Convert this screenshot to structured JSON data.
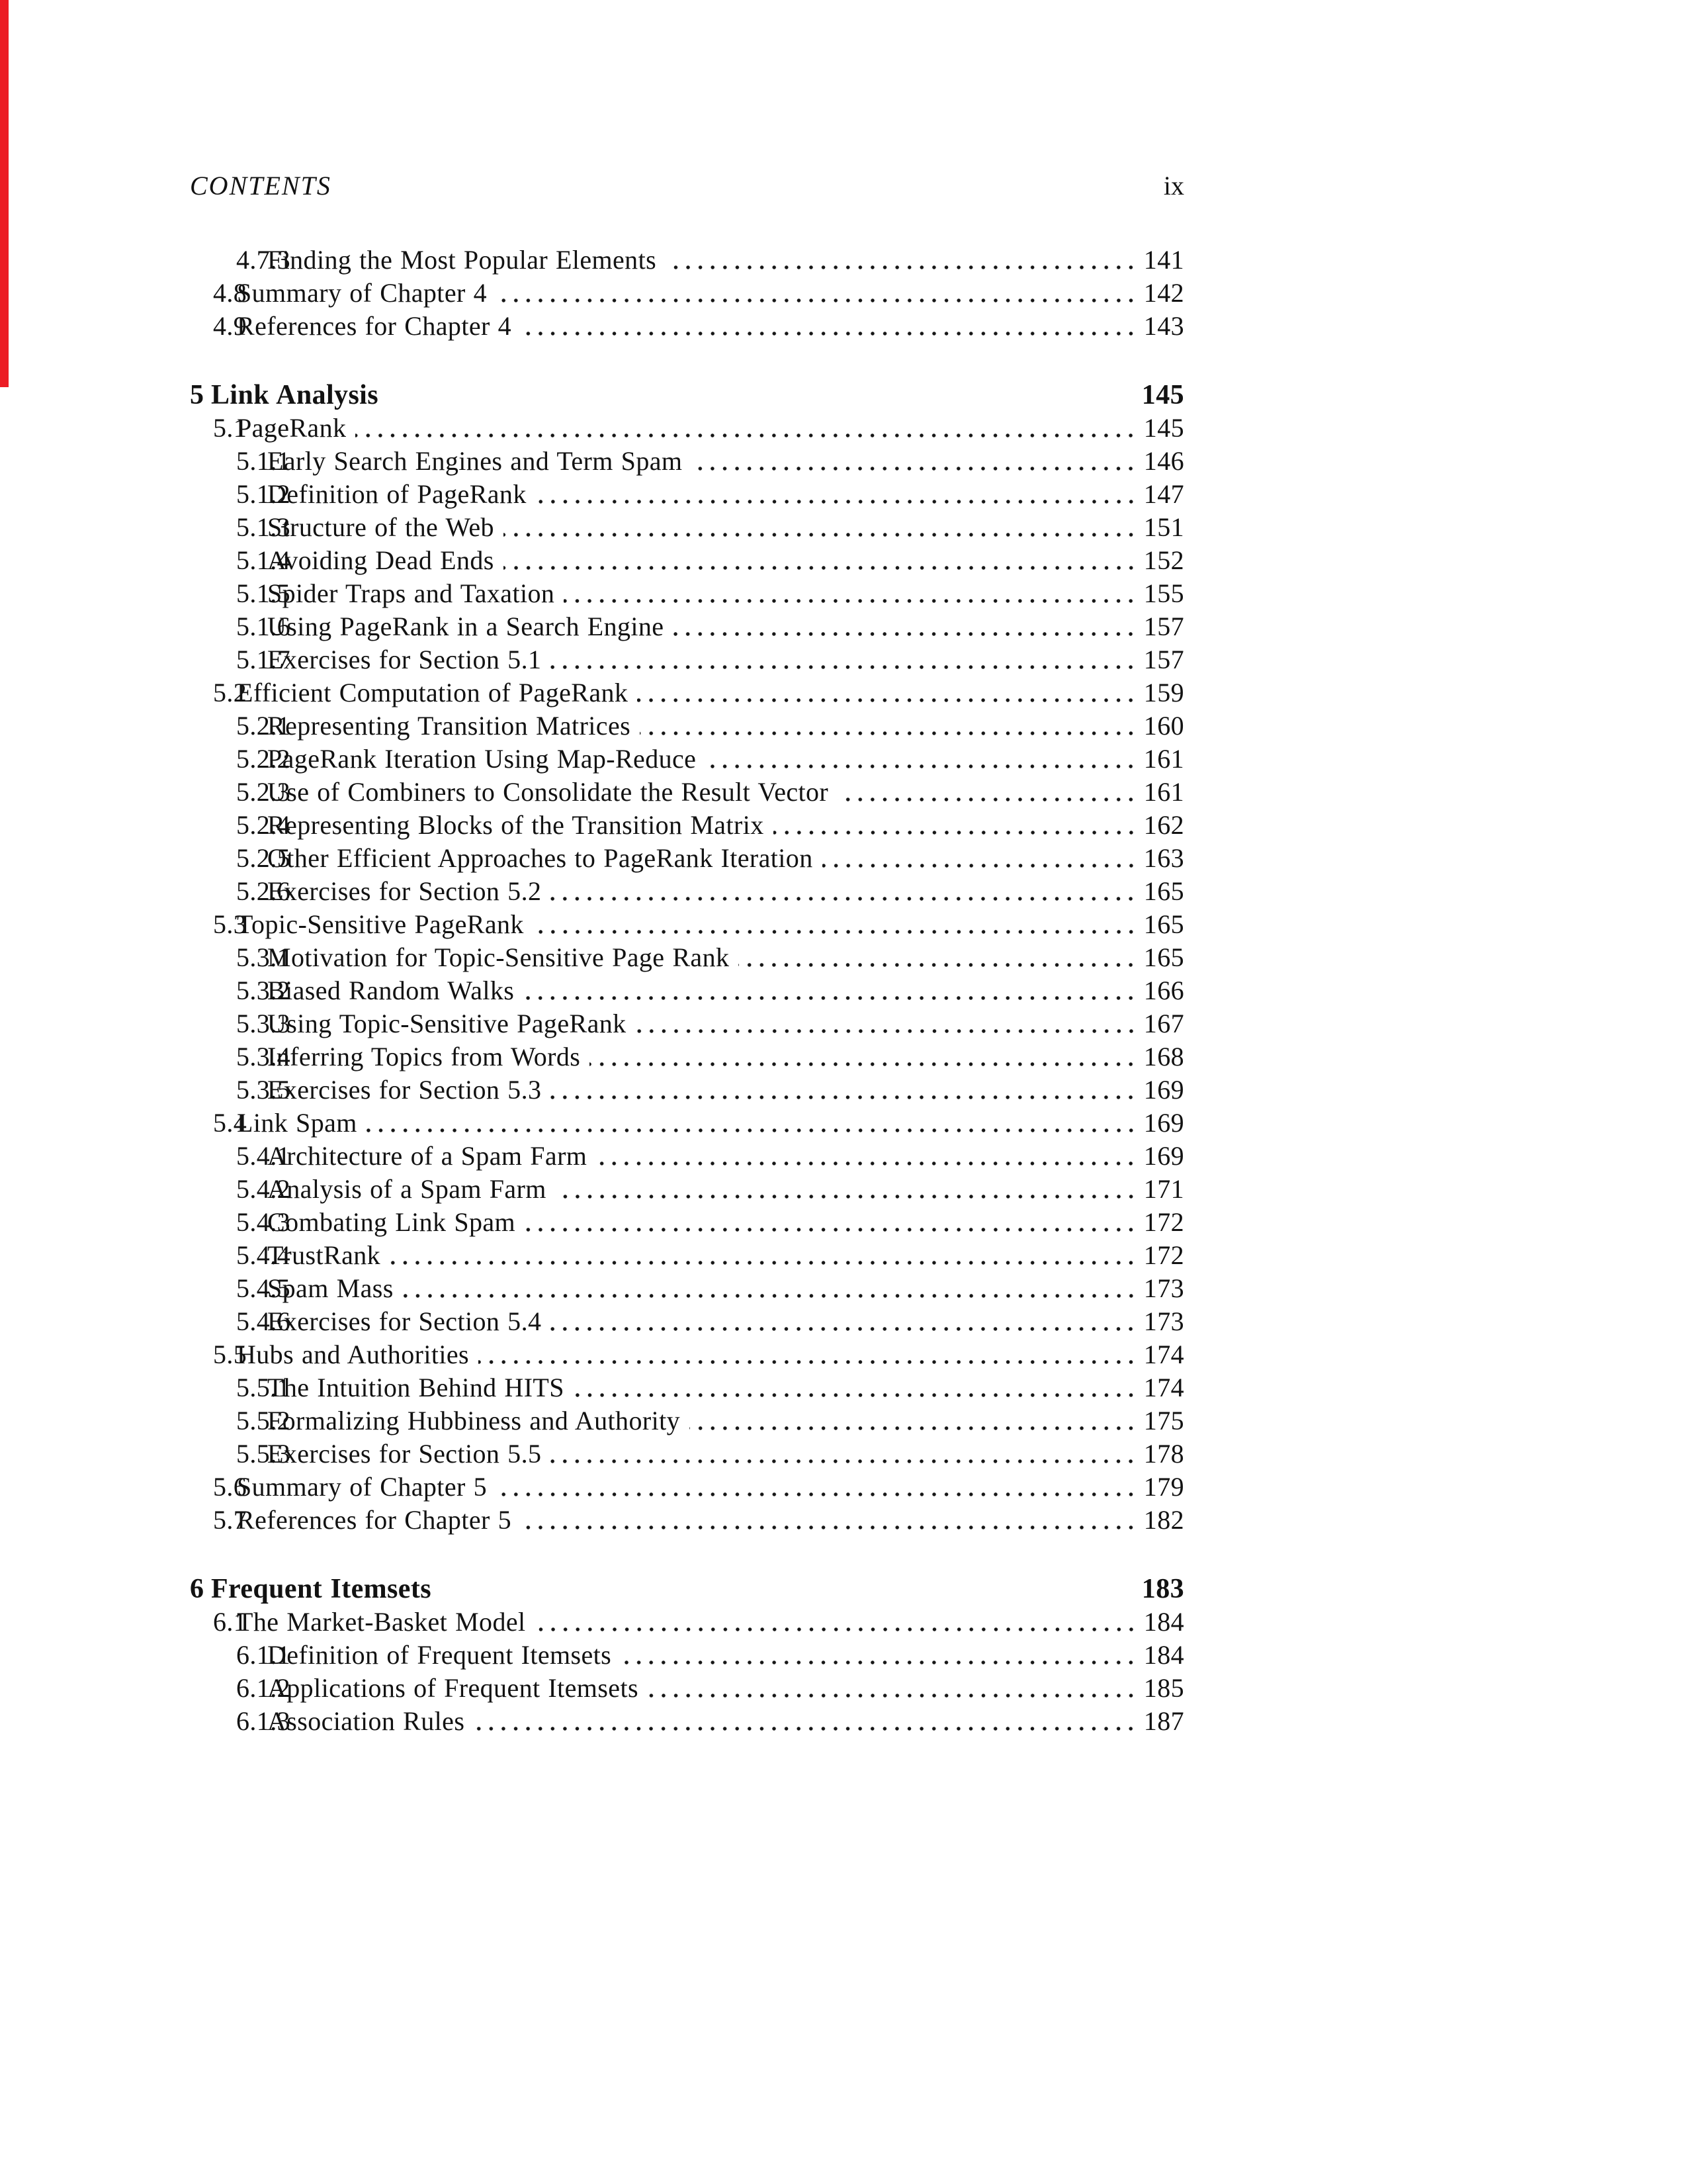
{
  "accent": {
    "red_strip_color": "#ec1c24"
  },
  "header": {
    "title": "CONTENTS",
    "folio": "ix"
  },
  "toc": [
    {
      "level": 3,
      "number": "4.7.3",
      "title": "Finding the Most Popular Elements",
      "page": "141"
    },
    {
      "level": 2,
      "number": "4.8",
      "title": "Summary of Chapter 4",
      "page": "142"
    },
    {
      "level": 2,
      "number": "4.9",
      "title": "References for Chapter 4",
      "page": "143"
    },
    {
      "level": 1,
      "number": "5",
      "title": "Link Analysis",
      "page": "145"
    },
    {
      "level": 2,
      "number": "5.1",
      "title": "PageRank",
      "page": "145"
    },
    {
      "level": 3,
      "number": "5.1.1",
      "title": "Early Search Engines and Term Spam",
      "page": "146"
    },
    {
      "level": 3,
      "number": "5.1.2",
      "title": "Definition of PageRank",
      "page": "147"
    },
    {
      "level": 3,
      "number": "5.1.3",
      "title": "Structure of the Web",
      "page": "151"
    },
    {
      "level": 3,
      "number": "5.1.4",
      "title": "Avoiding Dead Ends",
      "page": "152"
    },
    {
      "level": 3,
      "number": "5.1.5",
      "title": "Spider Traps and Taxation",
      "page": "155"
    },
    {
      "level": 3,
      "number": "5.1.6",
      "title": "Using PageRank in a Search Engine",
      "page": "157"
    },
    {
      "level": 3,
      "number": "5.1.7",
      "title": "Exercises for Section 5.1",
      "page": "157"
    },
    {
      "level": 2,
      "number": "5.2",
      "title": "Efficient Computation of PageRank",
      "page": "159"
    },
    {
      "level": 3,
      "number": "5.2.1",
      "title": "Representing Transition Matrices",
      "page": "160"
    },
    {
      "level": 3,
      "number": "5.2.2",
      "title": "PageRank Iteration Using Map-Reduce",
      "page": "161"
    },
    {
      "level": 3,
      "number": "5.2.3",
      "title": "Use of Combiners to Consolidate the Result Vector",
      "page": "161"
    },
    {
      "level": 3,
      "number": "5.2.4",
      "title": "Representing Blocks of the Transition Matrix",
      "page": "162"
    },
    {
      "level": 3,
      "number": "5.2.5",
      "title": "Other Efficient Approaches to PageRank Iteration",
      "page": "163"
    },
    {
      "level": 3,
      "number": "5.2.6",
      "title": "Exercises for Section 5.2",
      "page": "165"
    },
    {
      "level": 2,
      "number": "5.3",
      "title": "Topic-Sensitive PageRank",
      "page": "165"
    },
    {
      "level": 3,
      "number": "5.3.1",
      "title": "Motivation for Topic-Sensitive Page Rank",
      "page": "165"
    },
    {
      "level": 3,
      "number": "5.3.2",
      "title": "Biased Random Walks",
      "page": "166"
    },
    {
      "level": 3,
      "number": "5.3.3",
      "title": "Using Topic-Sensitive PageRank",
      "page": "167"
    },
    {
      "level": 3,
      "number": "5.3.4",
      "title": "Inferring Topics from Words",
      "page": "168"
    },
    {
      "level": 3,
      "number": "5.3.5",
      "title": "Exercises for Section 5.3",
      "page": "169"
    },
    {
      "level": 2,
      "number": "5.4",
      "title": "Link Spam",
      "page": "169"
    },
    {
      "level": 3,
      "number": "5.4.1",
      "title": "Architecture of a Spam Farm",
      "page": "169"
    },
    {
      "level": 3,
      "number": "5.4.2",
      "title": "Analysis of a Spam Farm",
      "page": "171"
    },
    {
      "level": 3,
      "number": "5.4.3",
      "title": "Combating Link Spam",
      "page": "172"
    },
    {
      "level": 3,
      "number": "5.4.4",
      "title": "TrustRank",
      "page": "172"
    },
    {
      "level": 3,
      "number": "5.4.5",
      "title": "Spam Mass",
      "page": "173"
    },
    {
      "level": 3,
      "number": "5.4.6",
      "title": "Exercises for Section 5.4",
      "page": "173"
    },
    {
      "level": 2,
      "number": "5.5",
      "title": "Hubs and Authorities",
      "page": "174"
    },
    {
      "level": 3,
      "number": "5.5.1",
      "title": "The Intuition Behind HITS",
      "page": "174"
    },
    {
      "level": 3,
      "number": "5.5.2",
      "title": "Formalizing Hubbiness and Authority",
      "page": "175"
    },
    {
      "level": 3,
      "number": "5.5.3",
      "title": "Exercises for Section 5.5",
      "page": "178"
    },
    {
      "level": 2,
      "number": "5.6",
      "title": "Summary of Chapter 5",
      "page": "179"
    },
    {
      "level": 2,
      "number": "5.7",
      "title": "References for Chapter 5",
      "page": "182"
    },
    {
      "level": 1,
      "number": "6",
      "title": "Frequent Itemsets",
      "page": "183"
    },
    {
      "level": 2,
      "number": "6.1",
      "title": "The Market-Basket Model",
      "page": "184"
    },
    {
      "level": 3,
      "number": "6.1.1",
      "title": "Definition of Frequent Itemsets",
      "page": "184"
    },
    {
      "level": 3,
      "number": "6.1.2",
      "title": "Applications of Frequent Itemsets",
      "page": "185"
    },
    {
      "level": 3,
      "number": "6.1.3",
      "title": "Association Rules",
      "page": "187"
    }
  ]
}
